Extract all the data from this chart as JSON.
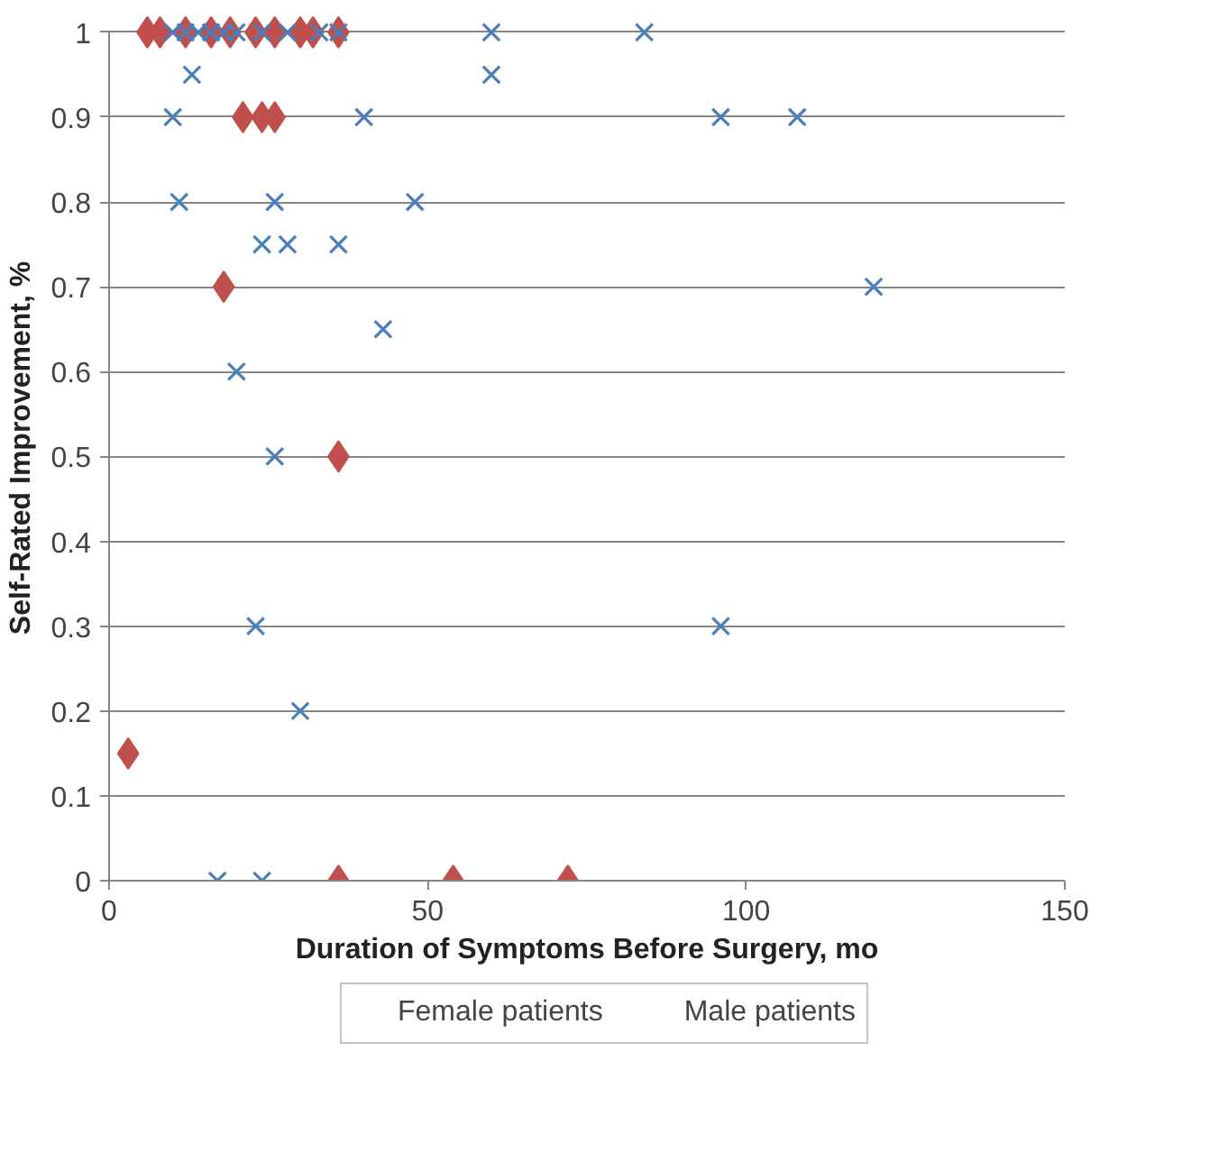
{
  "chart_data": {
    "type": "scatter",
    "xlabel": "Duration of Symptoms Before Surgery, mo",
    "ylabel": "Self-Rated Improvement, %",
    "xlim": [
      0,
      150
    ],
    "xticks": [
      0,
      50,
      100,
      150
    ],
    "ylim": [
      0,
      1
    ],
    "yticks": [
      0,
      0.1,
      0.2,
      0.3,
      0.4,
      0.5,
      0.6,
      0.7,
      0.8,
      0.9,
      1
    ],
    "grid": "y",
    "legend": "bottom",
    "series": [
      {
        "name": "Female patients",
        "color": "#4a7ebb",
        "marker": "cross",
        "x": [
          10,
          12,
          14,
          16,
          18,
          20,
          24,
          28,
          33,
          36,
          60,
          84,
          13,
          60,
          10,
          40,
          96,
          108,
          11,
          26,
          48,
          24,
          28,
          36,
          120,
          43,
          20,
          26,
          23,
          96,
          30,
          17,
          24
        ],
        "values": [
          1,
          1,
          1,
          1,
          1,
          1,
          1,
          1,
          1,
          1,
          1,
          1,
          0.95,
          0.95,
          0.9,
          0.9,
          0.9,
          0.9,
          0.8,
          0.8,
          0.8,
          0.75,
          0.75,
          0.75,
          0.7,
          0.65,
          0.6,
          0.5,
          0.3,
          0.3,
          0.2,
          0,
          0
        ]
      },
      {
        "name": "Male patients",
        "color": "#c0504d",
        "marker": "diamond",
        "x": [
          6,
          8,
          12,
          16,
          19,
          23,
          26,
          30,
          32,
          36,
          21,
          24,
          26,
          18,
          36,
          3,
          36,
          54,
          72
        ],
        "values": [
          1,
          1,
          1,
          1,
          1,
          1,
          1,
          1,
          1,
          1,
          0.9,
          0.9,
          0.9,
          0.7,
          0.5,
          0.15,
          0,
          0,
          0
        ]
      }
    ]
  }
}
